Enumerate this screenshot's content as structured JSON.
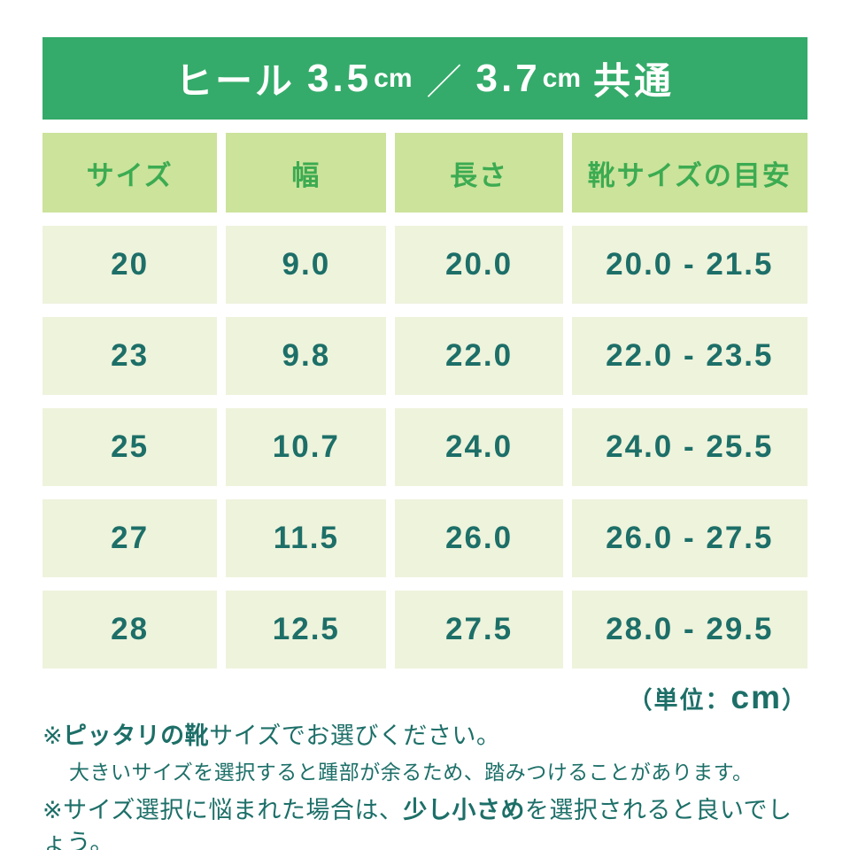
{
  "banner": {
    "label": "ヒール",
    "value1": "3.5",
    "unit1": "cm",
    "separator": "／",
    "value2": "3.7",
    "unit2": "cm",
    "suffix": "共通"
  },
  "table": {
    "headers": [
      "サイズ",
      "幅",
      "長さ",
      "靴サイズの目安"
    ],
    "rows": [
      [
        "20",
        "9.0",
        "20.0",
        "20.0 - 21.5"
      ],
      [
        "23",
        "9.8",
        "22.0",
        "22.0 - 23.5"
      ],
      [
        "25",
        "10.7",
        "24.0",
        "24.0 - 25.5"
      ],
      [
        "27",
        "11.5",
        "26.0",
        "26.0 - 27.5"
      ],
      [
        "28",
        "12.5",
        "27.5",
        "28.0 - 29.5"
      ]
    ]
  },
  "unit_note": {
    "prefix": "（単位：",
    "unit": "cm",
    "suffix": "）"
  },
  "notes": {
    "note1": {
      "marker": "※",
      "bold": "ピッタリの靴",
      "rest": "サイズでお選びください。",
      "subline": "大きいサイズを選択すると踵部が余るため、踏みつけることがあります。"
    },
    "note2": {
      "marker": "※",
      "pre": "サイズ選択に悩まれた場合は、",
      "bold": "少し小さめ",
      "post": "を選択されると良いでしょう。"
    }
  },
  "colors": {
    "banner_green": "#34ab6a",
    "header_bg": "#cbe39b",
    "header_text": "#3cab51",
    "cell_bg": "#eef3dc",
    "text_teal": "#1d6f68"
  },
  "chart_data": {
    "type": "table",
    "title": "ヒール 3.5cm ／ 3.7cm 共通",
    "columns": [
      "サイズ",
      "幅",
      "長さ",
      "靴サイズの目安"
    ],
    "rows": [
      {
        "サイズ": 20,
        "幅": 9.0,
        "長さ": 20.0,
        "靴サイズの目安": "20.0 - 21.5"
      },
      {
        "サイズ": 23,
        "幅": 9.8,
        "長さ": 22.0,
        "靴サイズの目安": "22.0 - 23.5"
      },
      {
        "サイズ": 25,
        "幅": 10.7,
        "長さ": 24.0,
        "靴サイズの目安": "24.0 - 25.5"
      },
      {
        "サイズ": 27,
        "幅": 11.5,
        "長さ": 26.0,
        "靴サイズの目安": "26.0 - 27.5"
      },
      {
        "サイズ": 28,
        "幅": 12.5,
        "長さ": 27.5,
        "靴サイズの目安": "28.0 - 29.5"
      }
    ],
    "unit": "cm",
    "footnotes": [
      "※ピッタリの靴サイズでお選びください。大きいサイズを選択すると踵部が余るため、踏みつけることがあります。",
      "※サイズ選択に悩まれた場合は、少し小さめを選択されると良いでしょう。"
    ]
  }
}
